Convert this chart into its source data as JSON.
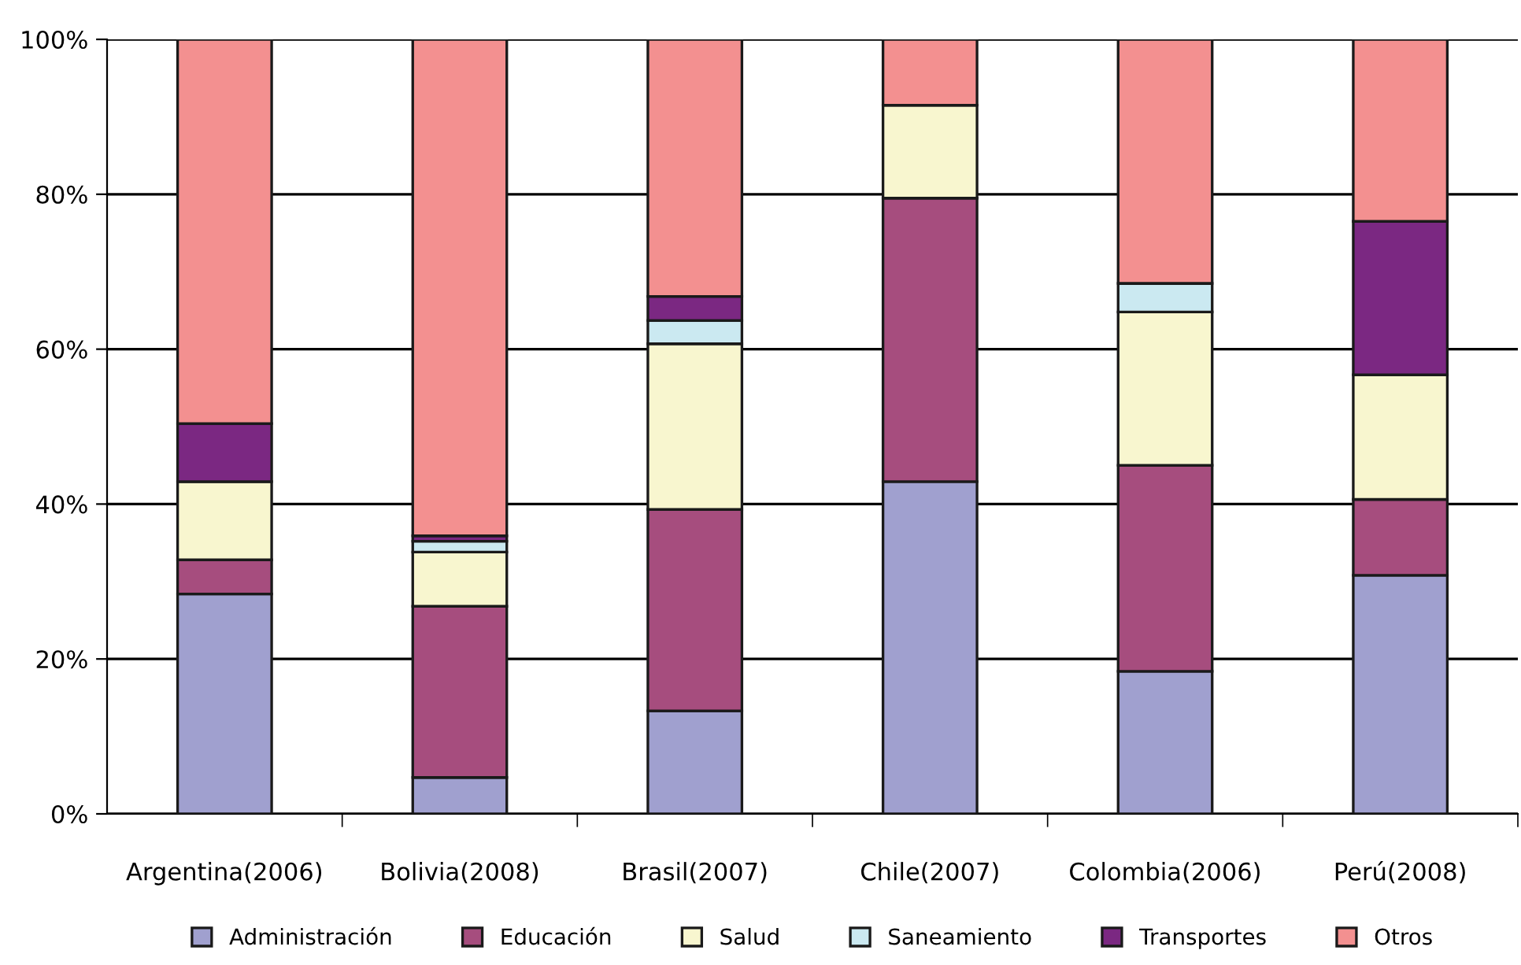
{
  "chart_data": {
    "type": "bar",
    "stacked": true,
    "categories": [
      "Argentina(2006)",
      "Bolivia(2008)",
      "Brasil(2007)",
      "Chile(2007)",
      "Colombia(2006)",
      "Perú(2008)"
    ],
    "series": [
      {
        "name": "Administración",
        "color": "#a0a0cf",
        "values": [
          28.4,
          4.7,
          13.3,
          42.9,
          18.4,
          30.8
        ]
      },
      {
        "name": "Educación",
        "color": "#a64d7e",
        "values": [
          4.4,
          22.1,
          26.0,
          36.6,
          26.6,
          9.8
        ]
      },
      {
        "name": "Salud",
        "color": "#f8f6cf",
        "values": [
          10.1,
          7.0,
          21.4,
          12.0,
          19.8,
          16.1
        ]
      },
      {
        "name": "Saneamiento",
        "color": "#cbe9f1",
        "values": [
          0,
          1.4,
          3.0,
          0,
          3.7,
          0
        ]
      },
      {
        "name": "Transportes",
        "color": "#7b2882",
        "values": [
          7.5,
          0.7,
          3.1,
          0,
          0,
          19.8
        ]
      },
      {
        "name": "Otros",
        "color": "#f39090",
        "values": [
          49.6,
          64.1,
          33.2,
          8.5,
          31.5,
          23.5
        ]
      }
    ],
    "ylim": [
      0,
      100
    ],
    "yticks": [
      {
        "value": 0,
        "label": "0%"
      },
      {
        "value": 20,
        "label": "20%"
      },
      {
        "value": 40,
        "label": "40%"
      },
      {
        "value": 60,
        "label": "60%"
      },
      {
        "value": 80,
        "label": "80%"
      },
      {
        "value": 100,
        "label": "100%"
      }
    ],
    "grid": "y",
    "legend": "bottom"
  }
}
